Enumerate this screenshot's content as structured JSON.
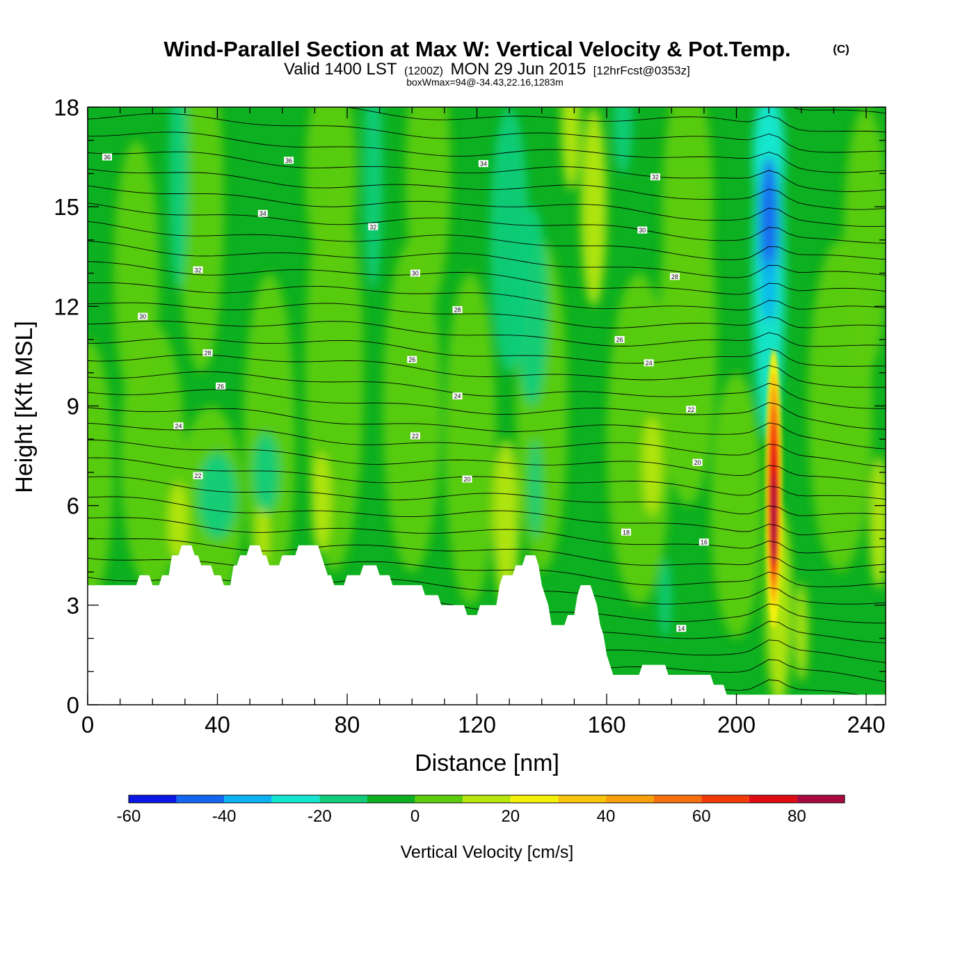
{
  "chart_data": {
    "type": "heatmap",
    "title": "Wind-Parallel Section at Max W: Vertical Velocity & Pot.Temp.",
    "copyright_mark": "(C)",
    "subtitle": {
      "valid_prefix": "Valid 1400 LST",
      "utc": "(1200Z)",
      "date": "MON 29 Jun 2015",
      "forecast": "[12hrFcst@0353z]"
    },
    "box_info": "boxWmax=94@-34.43,22.16,1283m",
    "xlabel": "Distance [nm]",
    "ylabel": "Height [Kft MSL]",
    "xlim": [
      0,
      246
    ],
    "ylim": [
      0,
      18
    ],
    "x_ticks": [
      "0",
      "40",
      "80",
      "120",
      "160",
      "200",
      "240"
    ],
    "y_ticks": [
      "0",
      "3",
      "6",
      "9",
      "12",
      "15",
      "18"
    ],
    "colorbar": {
      "label": "Vertical Velocity [cm/s]",
      "levels": [
        -60,
        -50,
        -40,
        -30,
        -20,
        -10,
        0,
        10,
        20,
        30,
        40,
        50,
        60,
        70,
        80,
        90
      ],
      "tick_labels": [
        "-60",
        "-40",
        "-20",
        "0",
        "20",
        "40",
        "60",
        "80"
      ],
      "colors": [
        "#0b17e6",
        "#1466f0",
        "#0bb2f2",
        "#14e6d0",
        "#11cc7a",
        "#0db020",
        "#5dcc0a",
        "#b6e60a",
        "#f5f00a",
        "#f9c40a",
        "#f7a00a",
        "#f77010",
        "#f23a0a",
        "#e00a14",
        "#a80a40"
      ]
    },
    "terrain_kft": [
      [
        0,
        3.6
      ],
      [
        15,
        3.6
      ],
      [
        16,
        3.9
      ],
      [
        19,
        3.9
      ],
      [
        20,
        3.6
      ],
      [
        22,
        3.6
      ],
      [
        23,
        3.9
      ],
      [
        25,
        3.9
      ],
      [
        26,
        4.5
      ],
      [
        28,
        4.5
      ],
      [
        29,
        4.8
      ],
      [
        32,
        4.8
      ],
      [
        33,
        4.5
      ],
      [
        34,
        4.5
      ],
      [
        35,
        4.2
      ],
      [
        38,
        4.2
      ],
      [
        39,
        3.9
      ],
      [
        41,
        3.9
      ],
      [
        42,
        3.6
      ],
      [
        44,
        3.6
      ],
      [
        45,
        4.2
      ],
      [
        46,
        4.2
      ],
      [
        47,
        4.5
      ],
      [
        49,
        4.5
      ],
      [
        50,
        4.8
      ],
      [
        53,
        4.8
      ],
      [
        54,
        4.5
      ],
      [
        55,
        4.5
      ],
      [
        56,
        4.2
      ],
      [
        59,
        4.2
      ],
      [
        60,
        4.5
      ],
      [
        64,
        4.5
      ],
      [
        65,
        4.8
      ],
      [
        71,
        4.8
      ],
      [
        72,
        4.5
      ],
      [
        73,
        4.2
      ],
      [
        74,
        3.9
      ],
      [
        75,
        3.9
      ],
      [
        76,
        3.6
      ],
      [
        79,
        3.6
      ],
      [
        80,
        3.9
      ],
      [
        84,
        3.9
      ],
      [
        85,
        4.2
      ],
      [
        89,
        4.2
      ],
      [
        90,
        3.9
      ],
      [
        93,
        3.9
      ],
      [
        94,
        3.6
      ],
      [
        103,
        3.6
      ],
      [
        104,
        3.3
      ],
      [
        108,
        3.3
      ],
      [
        109,
        3.0
      ],
      [
        116,
        3.0
      ],
      [
        117,
        2.7
      ],
      [
        120,
        2.7
      ],
      [
        121,
        3.0
      ],
      [
        126,
        3.0
      ],
      [
        127,
        3.6
      ],
      [
        128,
        3.9
      ],
      [
        131,
        3.9
      ],
      [
        132,
        4.2
      ],
      [
        134,
        4.2
      ],
      [
        135,
        4.5
      ],
      [
        138,
        4.5
      ],
      [
        139,
        4.2
      ],
      [
        140,
        3.6
      ],
      [
        142,
        3.0
      ],
      [
        143,
        2.4
      ],
      [
        147,
        2.4
      ],
      [
        148,
        2.7
      ],
      [
        150,
        2.7
      ],
      [
        151,
        3.3
      ],
      [
        152,
        3.6
      ],
      [
        155,
        3.6
      ],
      [
        156,
        3.3
      ],
      [
        157,
        3.0
      ],
      [
        158,
        2.4
      ],
      [
        159,
        2.1
      ],
      [
        160,
        1.5
      ],
      [
        161,
        1.2
      ],
      [
        162,
        0.9
      ],
      [
        170,
        0.9
      ],
      [
        171,
        1.2
      ],
      [
        178,
        1.2
      ],
      [
        179,
        0.9
      ],
      [
        192,
        0.9
      ],
      [
        193,
        0.6
      ],
      [
        196,
        0.6
      ],
      [
        197,
        0.3
      ],
      [
        246,
        0.3
      ]
    ],
    "updraft_max": {
      "x_nm": 211.5,
      "z_kft": 6.5,
      "w_cms": 94
    },
    "theta_contour_labels": [
      {
        "x": 6,
        "z": 16.5,
        "label": "36"
      },
      {
        "x": 62,
        "z": 16.4,
        "label": "36"
      },
      {
        "x": 122,
        "z": 16.3,
        "label": "34"
      },
      {
        "x": 175,
        "z": 15.9,
        "label": "32"
      },
      {
        "x": 54,
        "z": 14.8,
        "label": "34"
      },
      {
        "x": 88,
        "z": 14.4,
        "label": "32"
      },
      {
        "x": 171,
        "z": 14.3,
        "label": "30"
      },
      {
        "x": 34,
        "z": 13.1,
        "label": "32"
      },
      {
        "x": 101,
        "z": 13.0,
        "label": "30"
      },
      {
        "x": 181,
        "z": 12.9,
        "label": "28"
      },
      {
        "x": 17,
        "z": 11.7,
        "label": "30"
      },
      {
        "x": 114,
        "z": 11.9,
        "label": "28"
      },
      {
        "x": 164,
        "z": 11.0,
        "label": "26"
      },
      {
        "x": 37,
        "z": 10.6,
        "label": "28"
      },
      {
        "x": 100,
        "z": 10.4,
        "label": "26"
      },
      {
        "x": 173,
        "z": 10.3,
        "label": "24"
      },
      {
        "x": 41,
        "z": 9.6,
        "label": "26"
      },
      {
        "x": 114,
        "z": 9.3,
        "label": "24"
      },
      {
        "x": 186,
        "z": 8.9,
        "label": "22"
      },
      {
        "x": 28,
        "z": 8.4,
        "label": "24"
      },
      {
        "x": 101,
        "z": 8.1,
        "label": "22"
      },
      {
        "x": 188,
        "z": 7.3,
        "label": "20"
      },
      {
        "x": 34,
        "z": 6.9,
        "label": "22"
      },
      {
        "x": 117,
        "z": 6.8,
        "label": "20"
      },
      {
        "x": 166,
        "z": 5.2,
        "label": "18"
      },
      {
        "x": 190,
        "z": 4.9,
        "label": "16"
      },
      {
        "x": 183,
        "z": 2.3,
        "label": "14"
      }
    ]
  }
}
